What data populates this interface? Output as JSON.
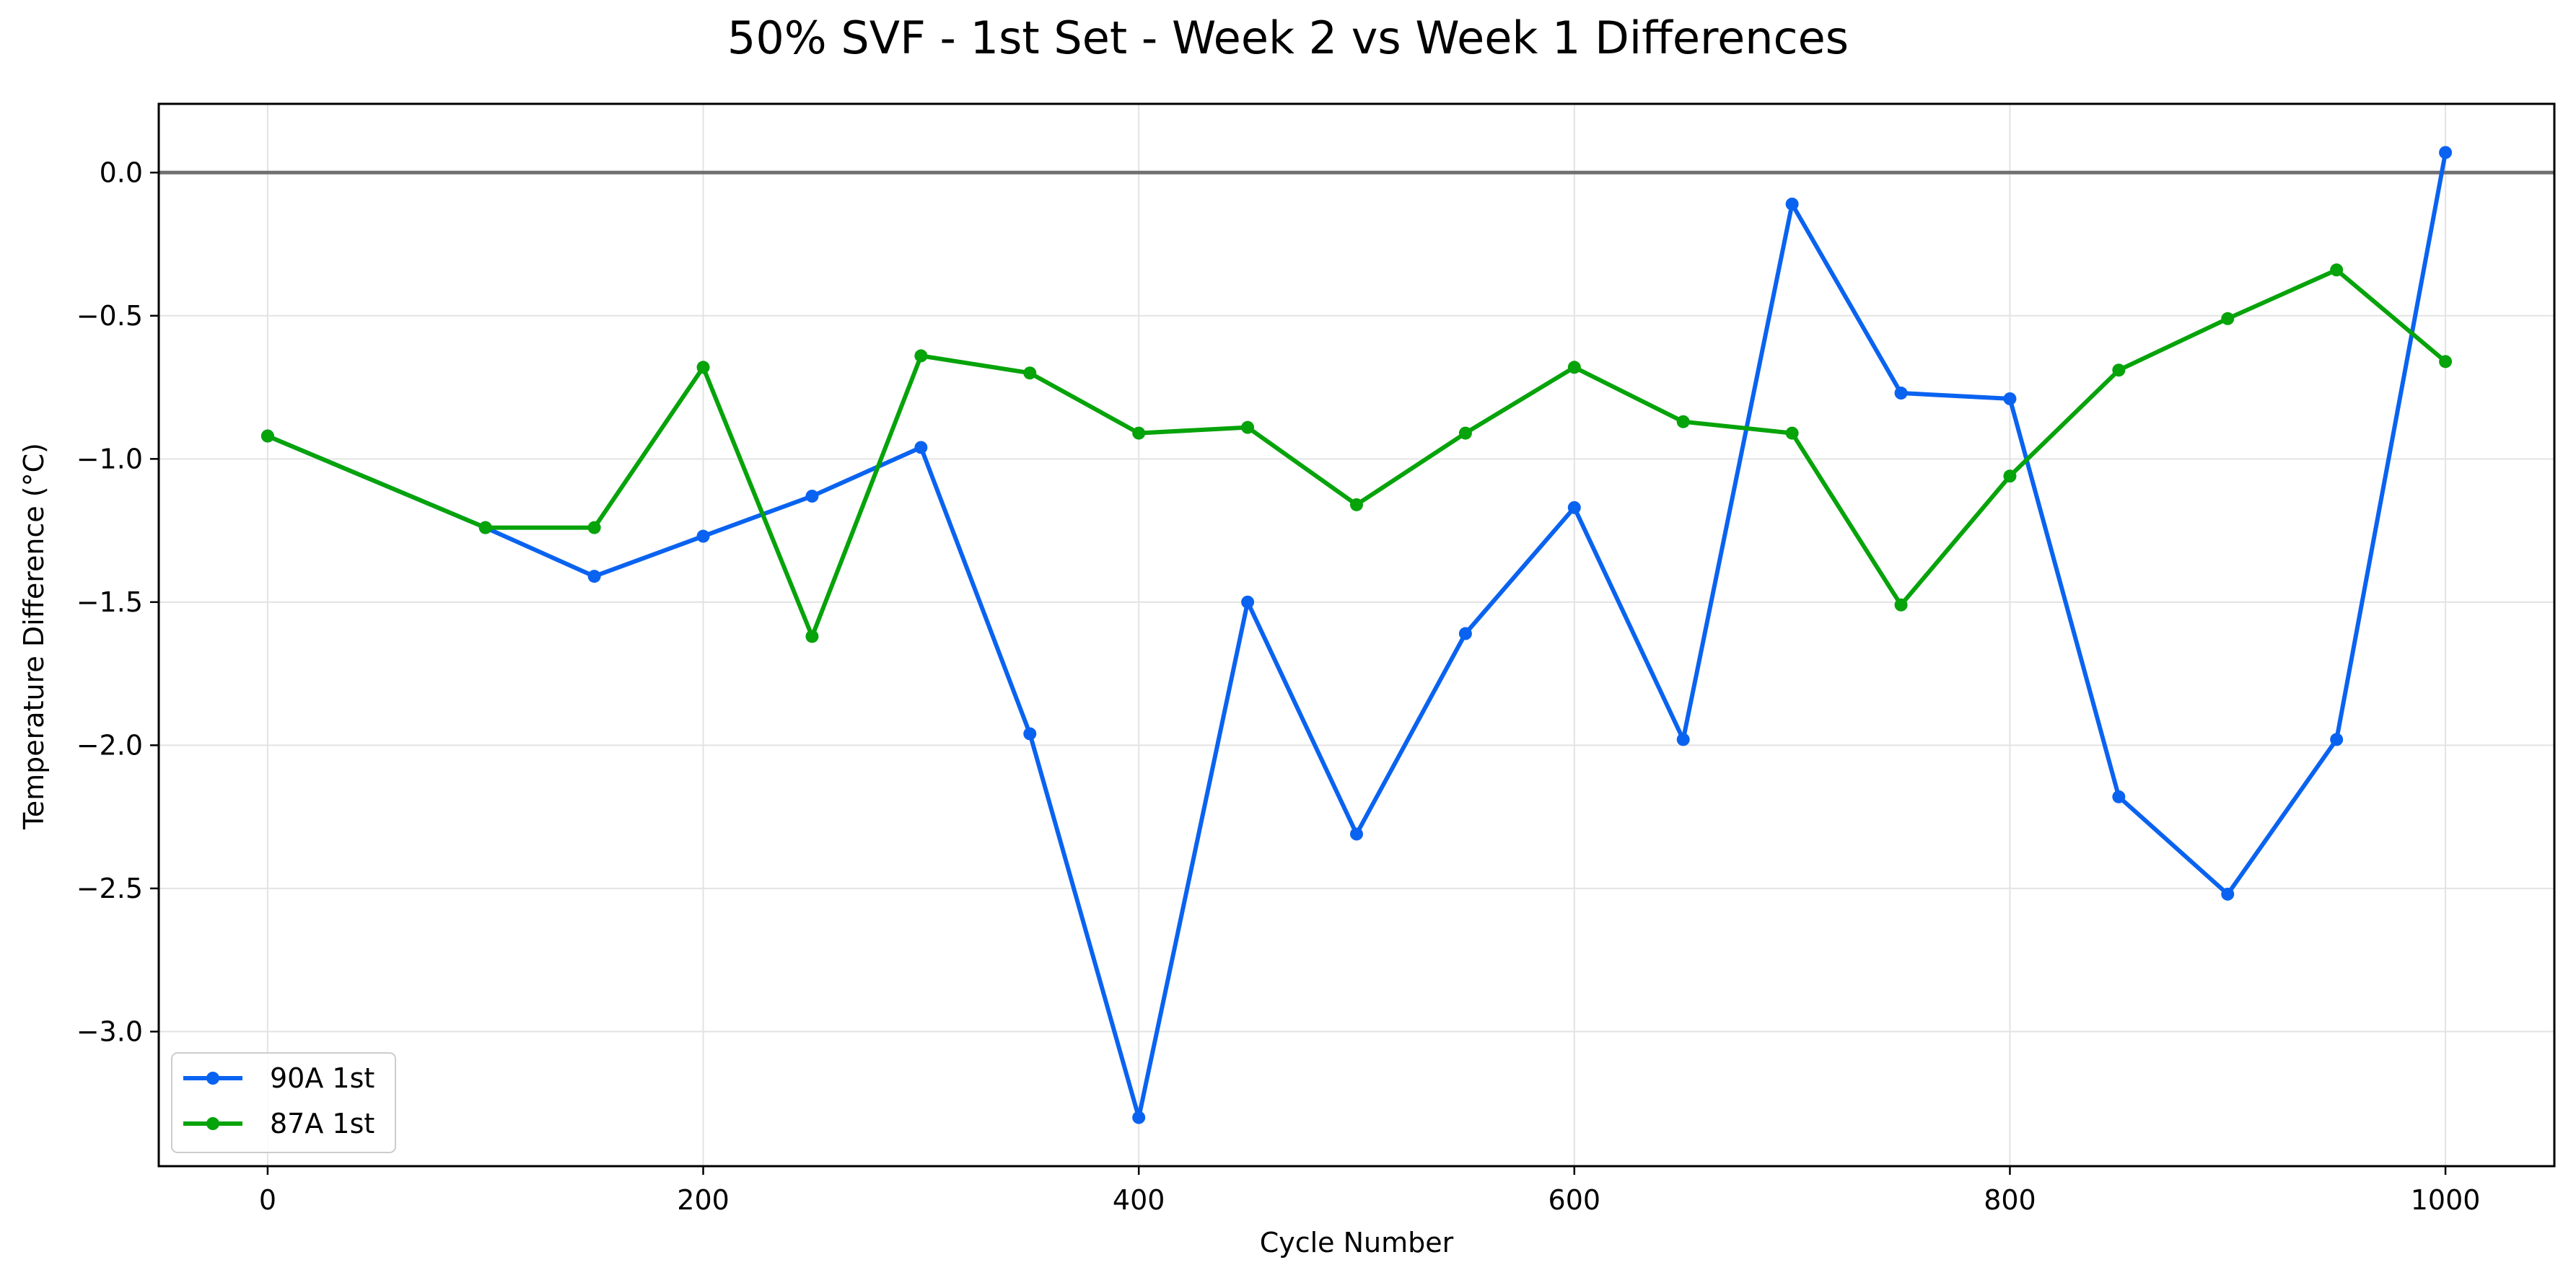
{
  "chart_data": {
    "type": "line",
    "title": "50% SVF - 1st Set - Week 2 vs Week 1 Differences",
    "xlabel": "Cycle Number",
    "ylabel": "Temperature Difference (°C)",
    "xlim": [
      -50,
      1050
    ],
    "ylim": [
      -3.47,
      0.24
    ],
    "xticks": [
      0,
      200,
      400,
      600,
      800,
      1000
    ],
    "xtick_labels": [
      "0",
      "200",
      "400",
      "600",
      "800",
      "1000"
    ],
    "yticks": [
      0.0,
      -0.5,
      -1.0,
      -1.5,
      -2.0,
      -2.5,
      -3.0
    ],
    "ytick_labels": [
      "0.0",
      "−0.5",
      "−1.0",
      "−1.5",
      "−2.0",
      "−2.5",
      "−3.0"
    ],
    "grid": true,
    "reference_line_y": 0,
    "reference_line_color": "#707070",
    "legend_position": "lower-left",
    "series": [
      {
        "name": "90A 1st",
        "color": "#0a63f0",
        "x": [
          0,
          100,
          150,
          200,
          250,
          300,
          350,
          400,
          450,
          500,
          550,
          600,
          650,
          700,
          750,
          800,
          850,
          900,
          950,
          1000
        ],
        "y": [
          -0.92,
          -1.24,
          -1.41,
          -1.27,
          -1.13,
          -0.96,
          -1.96,
          -3.3,
          -1.5,
          -2.31,
          -1.61,
          -1.17,
          -1.98,
          -0.11,
          -0.77,
          -0.79,
          -2.18,
          -2.52,
          -1.98,
          0.07
        ]
      },
      {
        "name": "87A 1st",
        "color": "#06a30a",
        "x": [
          0,
          100,
          150,
          200,
          250,
          300,
          350,
          400,
          450,
          500,
          550,
          600,
          650,
          700,
          750,
          800,
          850,
          900,
          950,
          1000
        ],
        "y": [
          -0.92,
          -1.24,
          -1.24,
          -0.68,
          -1.62,
          -0.64,
          -0.7,
          -0.91,
          -0.89,
          -1.16,
          -0.91,
          -0.68,
          -0.87,
          -0.91,
          -1.51,
          -1.06,
          -0.69,
          -0.51,
          -0.34,
          -0.66
        ]
      }
    ]
  }
}
